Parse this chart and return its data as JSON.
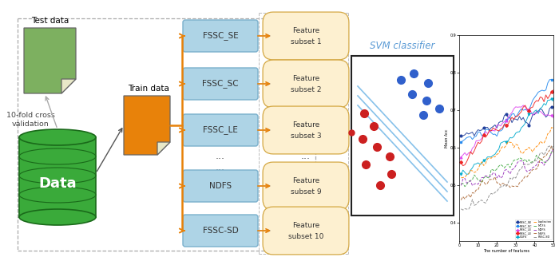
{
  "bg_color": "#ffffff",
  "test_data_label": "Test data",
  "train_data_label": "Train data",
  "data_label": "Data",
  "cross_val_label": "10-fold cross\nvalidation",
  "svm_label": "SVM classifier",
  "fssc_boxes": [
    "FSSC_SE",
    "FSSC_SC",
    "FSSC_LE",
    "NDFS",
    "FSSC-SD"
  ],
  "feature_subsets": [
    "Feature\nsubset 1",
    "Feature\nsubset 2",
    "Feature\nsubset 3",
    "Feature\nsubset 9",
    "Feature\nsubset 10"
  ],
  "box_color_blue": "#aed4e6",
  "box_border_blue": "#7ab0cc",
  "box_color_cream": "#fdf0d0",
  "box_border_cream": "#d4a843",
  "arrow_color_orange": "#e8820a",
  "arrow_color_green": "#6a9e3a",
  "data_cylinder_color": "#3aaa3a",
  "cyl_edge_color": "#1a6a1a",
  "train_file_color": "#e8820a",
  "test_file_color": "#7db060",
  "svm_line_color": "#7abbe8",
  "dot_blue": "#3060cc",
  "dot_red": "#cc2020",
  "line_colors": [
    "#2255cc",
    "#2196F3",
    "#e040fb",
    "#e53935",
    "#00bcd4",
    "#ff9800",
    "#4caf50",
    "#9c27b0",
    "#795548",
    "#888888"
  ],
  "line_labels": [
    "FSSC_SE",
    "FSSC_SC",
    "FSSC_LE",
    "FSSC_LE",
    "SGFS",
    "Laplacian",
    "MCFS",
    "NDFS",
    "NGFS",
    "FSSC-SD"
  ]
}
